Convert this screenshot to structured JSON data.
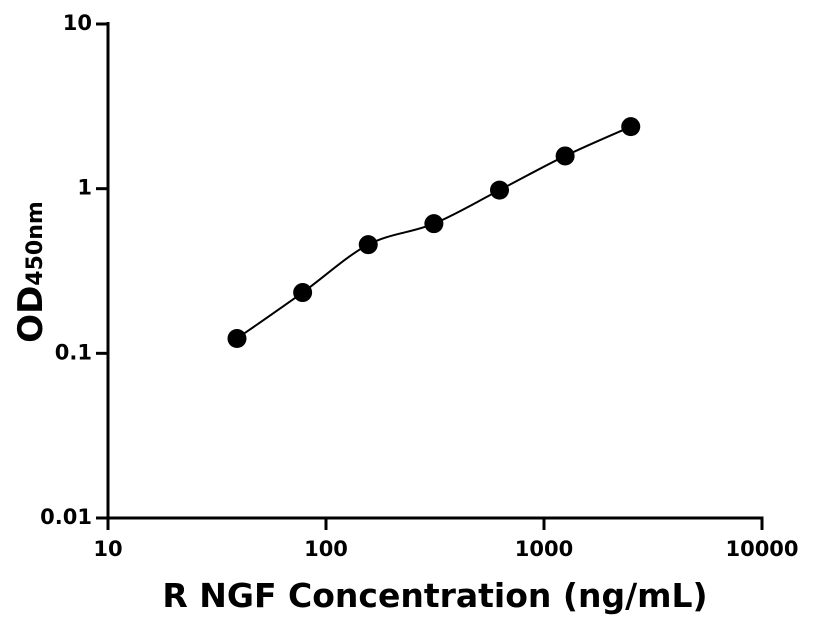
{
  "chart_data": {
    "type": "scatter",
    "x_label": "R NGF Concentration (ng/mL)",
    "y_label": "OD",
    "y_label_subscript": "450nm",
    "x": [
      39.06,
      78.13,
      156.25,
      312.5,
      625,
      1250,
      2500
    ],
    "series": [
      {
        "color": "#000000",
        "values": [
          0.123,
          0.234,
          0.457,
          0.613,
          0.98,
          1.58,
          2.38
        ]
      }
    ],
    "xlim": [
      10,
      10000
    ],
    "xticks": [
      10,
      100,
      1000,
      10000
    ],
    "ylim": [
      0.01,
      10
    ],
    "yticks": [
      0.01,
      0.1,
      1,
      10
    ],
    "x_log": true,
    "y_log": true,
    "fit_line": true,
    "grid": false
  }
}
